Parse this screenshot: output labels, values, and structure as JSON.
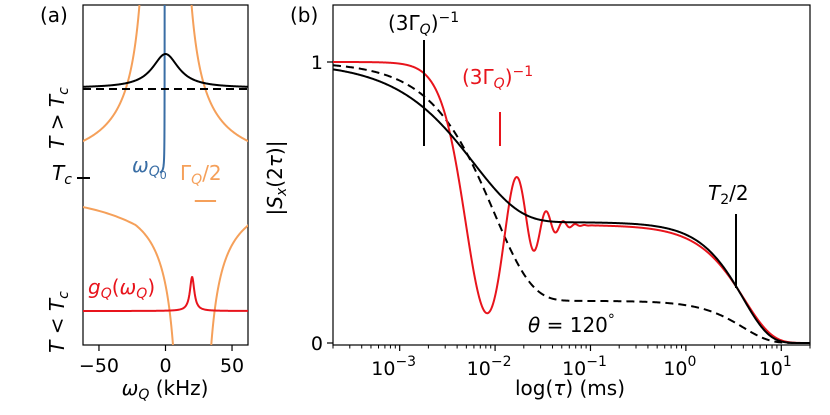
{
  "chart_data": [
    {
      "panel_label": "(a)",
      "type": "line",
      "xlabel": "ω_Q (kHz)",
      "xlim": [
        -62,
        62
      ],
      "x_ticks": [
        -50,
        0,
        50
      ],
      "x_tick_labels": [
        "−50",
        "0",
        "50"
      ],
      "ylabel_top": "T > T_c",
      "ylabel_mid": "T_c",
      "ylabel_bottom": "T < T_c",
      "annotations": [
        {
          "text": "ω_Q0",
          "color": "#3a6ea5"
        },
        {
          "text": "Γ_Q/2",
          "color": "#f5a05a"
        },
        {
          "text": "g_Q(ω_Q)",
          "color": "#e8141c"
        }
      ],
      "series": [
        {
          "kind": "lorentzian",
          "color": "#000000",
          "center": 0,
          "width": 12
        },
        {
          "kind": "baseline-dashed",
          "color": "#000000"
        },
        {
          "kind": "omegaQ0-vs-T",
          "color": "#3a6ea5"
        },
        {
          "kind": "GammaQ-vs-T",
          "color": "#f5a05a"
        },
        {
          "kind": "peak",
          "color": "#e8141c",
          "center": 20,
          "width": 2
        }
      ]
    },
    {
      "panel_label": "(b)",
      "type": "line",
      "xlabel": "log(τ) (ms)",
      "ylabel": "|S_x(2τ)|",
      "xscale": "log",
      "xlim": [
        0.0002,
        20
      ],
      "ylim": [
        0,
        1
      ],
      "x_ticks": [
        0.001,
        0.01,
        0.1,
        1,
        10
      ],
      "x_tick_labels": [
        "10",
        "10",
        "10",
        "10",
        "10"
      ],
      "x_tick_exponents": [
        "−3",
        "−2",
        "−1",
        "0",
        "1"
      ],
      "y_ticks": [
        0,
        1
      ],
      "y_tick_labels": [
        "0",
        "1"
      ],
      "annotations": [
        {
          "text": "(3Γ_Q)^−1",
          "color": "#000000",
          "x": 0.0018
        },
        {
          "text": "(3Γ_Q)^−1",
          "color": "#e8141c",
          "x": 0.011
        },
        {
          "text": "T_2/2",
          "color": "#000000",
          "x": 2.8
        },
        {
          "text": "θ = 120°",
          "color": "#000000"
        }
      ],
      "series": [
        {
          "style": "solid",
          "color": "#000000",
          "plateau": 0.43
        },
        {
          "style": "solid",
          "color": "#e8141c",
          "oscillating": true
        },
        {
          "style": "dashed",
          "color": "#000000",
          "plateau": 0.15
        }
      ]
    }
  ]
}
